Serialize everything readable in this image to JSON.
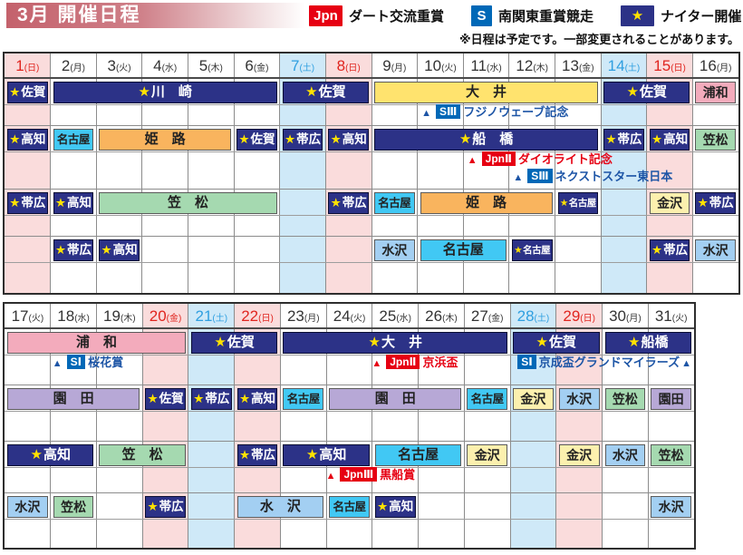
{
  "header": {
    "title": "3月 開催日程",
    "note": "※日程は予定です。一部変更されることがあります。",
    "legend": [
      {
        "badge": "Jpn",
        "type": "jpn",
        "label": "ダート交流重賞"
      },
      {
        "badge": "S",
        "type": "s",
        "label": "南関東重賞競走"
      },
      {
        "badge": "★",
        "type": "night",
        "label": "ナイター開催"
      }
    ]
  },
  "colors": {
    "title_from": "#c4626c",
    "jpn_red": "#e60012",
    "s_blue": "#0068b7",
    "night_navy": "#2c3287",
    "star_yellow": "#ffe200",
    "red_day_bg": "#fadcdc",
    "blue_day_bg": "#cfe9f8",
    "red_day_text": "#e0251f",
    "blue_day_text": "#2f9fe0",
    "annotation_blue": "#1d55a6",
    "venues": {
      "ooi": "#ffe36e",
      "urawa": "#f3abbc",
      "nagoya": "#41c8f4",
      "himeji": "#f9b45e",
      "kasamatsu": "#a5d9b0",
      "kanazawa": "#fcf0ae",
      "mizusawa": "#a3cff2",
      "sonoda": "#b7a8d6"
    }
  },
  "calendars": [
    {
      "name": "march-1-16",
      "days": [
        {
          "num": "1",
          "wd": "日",
          "type": "red"
        },
        {
          "num": "2",
          "wd": "月",
          "type": "normal"
        },
        {
          "num": "3",
          "wd": "火",
          "type": "normal"
        },
        {
          "num": "4",
          "wd": "水",
          "type": "normal"
        },
        {
          "num": "5",
          "wd": "木",
          "type": "normal"
        },
        {
          "num": "6",
          "wd": "金",
          "type": "normal"
        },
        {
          "num": "7",
          "wd": "土",
          "type": "blue"
        },
        {
          "num": "8",
          "wd": "日",
          "type": "red"
        },
        {
          "num": "9",
          "wd": "月",
          "type": "normal"
        },
        {
          "num": "10",
          "wd": "火",
          "type": "normal"
        },
        {
          "num": "11",
          "wd": "水",
          "type": "normal"
        },
        {
          "num": "12",
          "wd": "木",
          "type": "normal"
        },
        {
          "num": "13",
          "wd": "金",
          "type": "normal"
        },
        {
          "num": "14",
          "wd": "土",
          "type": "blue"
        },
        {
          "num": "15",
          "wd": "日",
          "type": "red"
        },
        {
          "num": "16",
          "wd": "月",
          "type": "normal"
        }
      ],
      "rows": [
        {
          "events": [
            {
              "col": 1,
              "span": 1,
              "venue": "saga",
              "night": true,
              "label": "佐賀"
            },
            {
              "col": 2,
              "span": 5,
              "venue": "kawasaki",
              "night": true,
              "label": "川　崎"
            },
            {
              "col": 7,
              "span": 2,
              "venue": "saga",
              "night": true,
              "label": "佐賀"
            },
            {
              "col": 9,
              "span": 5,
              "venue": "ooi",
              "night": false,
              "label": "大　井"
            },
            {
              "col": 14,
              "span": 2,
              "venue": "saga",
              "night": true,
              "label": "佐賀"
            },
            {
              "col": 16,
              "span": 1,
              "venue": "urawa",
              "night": false,
              "label": "浦和"
            }
          ]
        },
        {
          "events": [
            {
              "col": 1,
              "span": 1,
              "venue": "kochi",
              "night": true,
              "label": "高知"
            },
            {
              "col": 2,
              "span": 1,
              "venue": "nagoya",
              "night": false,
              "label": "名古屋"
            },
            {
              "col": 3,
              "span": 3,
              "venue": "himeji",
              "night": false,
              "label": "姫　路"
            },
            {
              "col": 6,
              "span": 1,
              "venue": "saga",
              "night": true,
              "label": "佐賀"
            },
            {
              "col": 7,
              "span": 1,
              "venue": "obihiro",
              "night": true,
              "label": "帯広"
            },
            {
              "col": 8,
              "span": 1,
              "venue": "kochi",
              "night": true,
              "label": "高知"
            },
            {
              "col": 9,
              "span": 5,
              "venue": "funabashi",
              "night": true,
              "label": "船　橋"
            },
            {
              "col": 14,
              "span": 1,
              "venue": "obihiro",
              "night": true,
              "label": "帯広"
            },
            {
              "col": 15,
              "span": 1,
              "venue": "kochi",
              "night": true,
              "label": "高知"
            },
            {
              "col": 16,
              "span": 1,
              "venue": "kasamatsu",
              "night": false,
              "label": "笠松"
            }
          ]
        },
        {
          "events": [
            {
              "col": 1,
              "span": 1,
              "venue": "obihiro",
              "night": true,
              "label": "帯広"
            },
            {
              "col": 2,
              "span": 1,
              "venue": "kochi",
              "night": true,
              "label": "高知"
            },
            {
              "col": 3,
              "span": 4,
              "venue": "kasamatsu",
              "night": false,
              "label": "笠　松"
            },
            {
              "col": 8,
              "span": 1,
              "venue": "obihiro",
              "night": true,
              "label": "帯広"
            },
            {
              "col": 9,
              "span": 1,
              "venue": "nagoya",
              "night": false,
              "label": "名古屋"
            },
            {
              "col": 10,
              "span": 3,
              "venue": "himeji",
              "night": false,
              "label": "姫　路"
            },
            {
              "col": 13,
              "span": 1,
              "venue": "nagoya",
              "night": true,
              "label": "名古屋"
            },
            {
              "col": 15,
              "span": 1,
              "venue": "kanazawa",
              "night": false,
              "label": "金沢"
            },
            {
              "col": 16,
              "span": 1,
              "venue": "obihiro",
              "night": true,
              "label": "帯広"
            }
          ]
        },
        {
          "events": [
            {
              "col": 2,
              "span": 1,
              "venue": "obihiro",
              "night": true,
              "label": "帯広"
            },
            {
              "col": 3,
              "span": 1,
              "venue": "kochi",
              "night": true,
              "label": "高知"
            },
            {
              "col": 9,
              "span": 1,
              "venue": "mizusawa",
              "night": false,
              "label": "水沢"
            },
            {
              "col": 10,
              "span": 2,
              "venue": "nagoya",
              "night": false,
              "label": "名古屋"
            },
            {
              "col": 12,
              "span": 1,
              "venue": "nagoya",
              "night": true,
              "label": "名古屋"
            },
            {
              "col": 15,
              "span": 1,
              "venue": "obihiro",
              "night": true,
              "label": "帯広"
            },
            {
              "col": 16,
              "span": 1,
              "venue": "mizusawa",
              "night": false,
              "label": "水沢"
            }
          ]
        }
      ],
      "annotations": [
        {
          "row": 1,
          "line": 1,
          "col": 10.05,
          "kind": "s",
          "badge": "SⅢ",
          "text": "フジノウェーブ記念",
          "tri": "before"
        },
        {
          "row": 2,
          "line": 1,
          "col": 11.05,
          "kind": "jpn",
          "badge": "JpnⅡ",
          "text": "ダイオライト記念",
          "tri": "before"
        },
        {
          "row": 2,
          "line": 2,
          "col": 12.05,
          "kind": "s",
          "badge": "SⅢ",
          "text": "ネクストスター東日本",
          "tri": "before"
        }
      ]
    },
    {
      "name": "march-17-31",
      "days": [
        {
          "num": "17",
          "wd": "火",
          "type": "normal"
        },
        {
          "num": "18",
          "wd": "水",
          "type": "normal"
        },
        {
          "num": "19",
          "wd": "木",
          "type": "normal"
        },
        {
          "num": "20",
          "wd": "金",
          "type": "red"
        },
        {
          "num": "21",
          "wd": "土",
          "type": "blue"
        },
        {
          "num": "22",
          "wd": "日",
          "type": "red"
        },
        {
          "num": "23",
          "wd": "月",
          "type": "normal"
        },
        {
          "num": "24",
          "wd": "火",
          "type": "normal"
        },
        {
          "num": "25",
          "wd": "水",
          "type": "normal"
        },
        {
          "num": "26",
          "wd": "木",
          "type": "normal"
        },
        {
          "num": "27",
          "wd": "金",
          "type": "normal"
        },
        {
          "num": "28",
          "wd": "土",
          "type": "blue"
        },
        {
          "num": "29",
          "wd": "日",
          "type": "red"
        },
        {
          "num": "30",
          "wd": "月",
          "type": "normal"
        },
        {
          "num": "31",
          "wd": "火",
          "type": "normal"
        }
      ],
      "rows": [
        {
          "events": [
            {
              "col": 1,
              "span": 4,
              "venue": "urawa",
              "night": false,
              "label": "浦　和"
            },
            {
              "col": 5,
              "span": 2,
              "venue": "saga",
              "night": true,
              "label": "佐賀"
            },
            {
              "col": 7,
              "span": 5,
              "venue": "ooi",
              "night": true,
              "label": "大　井"
            },
            {
              "col": 12,
              "span": 2,
              "venue": "saga",
              "night": true,
              "label": "佐賀"
            },
            {
              "col": 14,
              "span": 2,
              "venue": "funabashi",
              "night": true,
              "label": "船橋"
            }
          ]
        },
        {
          "events": [
            {
              "col": 1,
              "span": 3,
              "venue": "sonoda",
              "night": false,
              "label": "園　田"
            },
            {
              "col": 4,
              "span": 1,
              "venue": "saga",
              "night": true,
              "label": "佐賀"
            },
            {
              "col": 5,
              "span": 1,
              "venue": "obihiro",
              "night": true,
              "label": "帯広"
            },
            {
              "col": 6,
              "span": 1,
              "venue": "kochi",
              "night": true,
              "label": "高知"
            },
            {
              "col": 7,
              "span": 1,
              "venue": "nagoya",
              "night": false,
              "label": "名古屋"
            },
            {
              "col": 8,
              "span": 3,
              "venue": "sonoda",
              "night": false,
              "label": "園　田"
            },
            {
              "col": 11,
              "span": 1,
              "venue": "nagoya",
              "night": false,
              "label": "名古屋"
            },
            {
              "col": 12,
              "span": 1,
              "venue": "kanazawa",
              "night": false,
              "label": "金沢"
            },
            {
              "col": 13,
              "span": 1,
              "venue": "mizusawa",
              "night": false,
              "label": "水沢"
            },
            {
              "col": 14,
              "span": 1,
              "venue": "kasamatsu",
              "night": false,
              "label": "笠松"
            },
            {
              "col": 15,
              "span": 1,
              "venue": "sonoda",
              "night": false,
              "label": "園田"
            }
          ]
        },
        {
          "events": [
            {
              "col": 1,
              "span": 2,
              "venue": "kochi",
              "night": true,
              "label": "高知"
            },
            {
              "col": 3,
              "span": 2,
              "venue": "kasamatsu",
              "night": false,
              "label": "笠　松"
            },
            {
              "col": 6,
              "span": 1,
              "venue": "obihiro",
              "night": true,
              "label": "帯広"
            },
            {
              "col": 7,
              "span": 2,
              "venue": "kochi",
              "night": true,
              "label": "高知"
            },
            {
              "col": 9,
              "span": 2,
              "venue": "nagoya",
              "night": false,
              "label": "名古屋"
            },
            {
              "col": 11,
              "span": 1,
              "venue": "kanazawa",
              "night": false,
              "label": "金沢"
            },
            {
              "col": 13,
              "span": 1,
              "venue": "kanazawa",
              "night": false,
              "label": "金沢"
            },
            {
              "col": 14,
              "span": 1,
              "venue": "mizusawa",
              "night": false,
              "label": "水沢"
            },
            {
              "col": 15,
              "span": 1,
              "venue": "kasamatsu",
              "night": false,
              "label": "笠松"
            }
          ]
        },
        {
          "events": [
            {
              "col": 1,
              "span": 1,
              "venue": "mizusawa",
              "night": false,
              "label": "水沢"
            },
            {
              "col": 2,
              "span": 1,
              "venue": "kasamatsu",
              "night": false,
              "label": "笠松"
            },
            {
              "col": 4,
              "span": 1,
              "venue": "obihiro",
              "night": true,
              "label": "帯広"
            },
            {
              "col": 6,
              "span": 2,
              "venue": "mizusawa",
              "night": false,
              "label": "水　沢"
            },
            {
              "col": 8,
              "span": 1,
              "venue": "nagoya",
              "night": false,
              "label": "名古屋"
            },
            {
              "col": 9,
              "span": 1,
              "venue": "kochi",
              "night": true,
              "label": "高知"
            },
            {
              "col": 15,
              "span": 1,
              "venue": "mizusawa",
              "night": false,
              "label": "水沢"
            }
          ]
        }
      ],
      "annotations": [
        {
          "row": 1,
          "line": 1,
          "col": 2.0,
          "kind": "s",
          "badge": "SⅠ",
          "text": "桜花賞",
          "tri": "before"
        },
        {
          "row": 1,
          "line": 1,
          "col": 8.95,
          "kind": "jpn",
          "badge": "JpnⅡ",
          "text": "京浜盃",
          "tri": "before"
        },
        {
          "row": 1,
          "line": 1,
          "align": "right",
          "kind": "s",
          "badge": "SⅠ",
          "text": "京成盃グランドマイラーズ",
          "tri": "after"
        },
        {
          "row": 3,
          "line": 1,
          "col": 7.95,
          "kind": "jpn",
          "badge": "JpnⅢ",
          "text": "黒船賞",
          "tri": "before"
        }
      ]
    }
  ]
}
